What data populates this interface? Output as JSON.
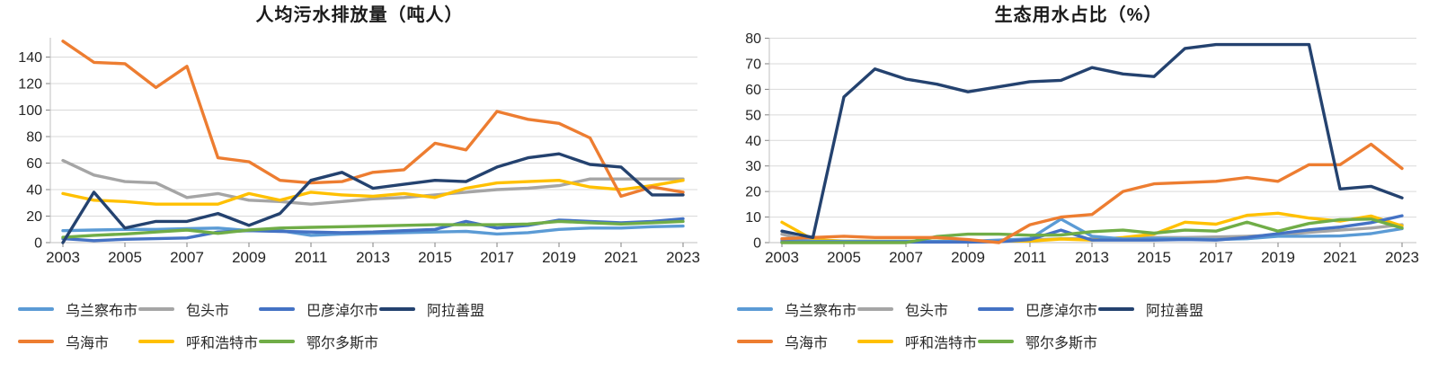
{
  "page": {
    "background": "#ffffff"
  },
  "chart_data": [
    {
      "type": "line",
      "title": "人均污水排放量（吨人）",
      "x": [
        2003,
        2004,
        2005,
        2006,
        2007,
        2008,
        2009,
        2010,
        2011,
        2012,
        2013,
        2014,
        2015,
        2016,
        2017,
        2018,
        2019,
        2020,
        2021,
        2022,
        2023
      ],
      "x_tick_labels": [
        "2003",
        "2005",
        "2007",
        "2009",
        "2011",
        "2013",
        "2015",
        "2017",
        "2019",
        "2021",
        "2023"
      ],
      "yticks": [
        0,
        20,
        40,
        60,
        80,
        100,
        120,
        140
      ],
      "ylim": [
        0,
        160
      ],
      "grid": "horizontal",
      "legend_position": "bottom",
      "series": [
        {
          "name": "乌兰察布市",
          "color": "#5B9BD5",
          "values": [
            9,
            9.5,
            10,
            10,
            10.5,
            11,
            9,
            9,
            5.5,
            6.5,
            7,
            7.5,
            8,
            8.5,
            6.5,
            7.5,
            10,
            11,
            11,
            12,
            12.5
          ]
        },
        {
          "name": "包头市",
          "color": "#A5A5A5",
          "values": [
            62,
            51,
            46,
            45,
            34,
            37,
            32,
            31,
            29,
            31,
            33,
            34,
            36,
            38,
            40,
            41,
            43,
            48,
            48,
            48,
            48
          ]
        },
        {
          "name": "巴彦淖尔市",
          "color": "#4472C4",
          "values": [
            3,
            1.5,
            2.5,
            3,
            3.5,
            8,
            9,
            8.5,
            8,
            7.5,
            8,
            9,
            10,
            16,
            11,
            13,
            17,
            16,
            15,
            16,
            18
          ]
        },
        {
          "name": "阿拉善盟",
          "color": "#24426F",
          "values": [
            0,
            38,
            11,
            16,
            16,
            22,
            13,
            22,
            47,
            53,
            41,
            44,
            47,
            46,
            57,
            64,
            67,
            59,
            57,
            36,
            36
          ]
        },
        {
          "name": "乌海市",
          "color": "#ED7D31",
          "values": [
            152,
            136,
            135,
            117,
            133,
            64,
            61,
            47,
            45,
            46,
            53,
            55,
            75,
            70,
            99,
            93,
            90,
            79,
            35,
            42,
            38
          ]
        },
        {
          "name": "呼和浩特市",
          "color": "#FFC000",
          "values": [
            37,
            32,
            31,
            29,
            29,
            29,
            37,
            32,
            38,
            36,
            35,
            37,
            34,
            41,
            45,
            46,
            47,
            42,
            40,
            43,
            47
          ]
        },
        {
          "name": "鄂尔多斯市",
          "color": "#70AD47",
          "values": [
            4,
            5.5,
            6.5,
            8,
            9.5,
            7,
            9.5,
            11,
            11.5,
            12,
            12.5,
            13,
            13.5,
            13.5,
            13.5,
            14,
            16,
            15,
            14,
            15,
            16
          ]
        }
      ]
    },
    {
      "type": "line",
      "title": "生态用水占比（%）",
      "x": [
        2003,
        2004,
        2005,
        2006,
        2007,
        2008,
        2009,
        2010,
        2011,
        2012,
        2013,
        2014,
        2015,
        2016,
        2017,
        2018,
        2019,
        2020,
        2021,
        2022,
        2023
      ],
      "x_tick_labels": [
        "2003",
        "2005",
        "2007",
        "2009",
        "2011",
        "2013",
        "2015",
        "2017",
        "2019",
        "2021",
        "2023"
      ],
      "yticks": [
        0,
        10,
        20,
        30,
        40,
        50,
        60,
        70,
        80
      ],
      "ylim": [
        0,
        83
      ],
      "grid": "horizontal",
      "legend_position": "bottom",
      "series": [
        {
          "name": "乌兰察布市",
          "color": "#5B9BD5",
          "values": [
            1,
            0.5,
            0.5,
            0.5,
            0.5,
            0.5,
            0.5,
            1,
            1.5,
            9.2,
            2.5,
            1.4,
            1.6,
            1.5,
            1.2,
            1.5,
            2.5,
            2.5,
            2.6,
            3.5,
            5.5
          ]
        },
        {
          "name": "包头市",
          "color": "#A5A5A5",
          "values": [
            3.3,
            0.6,
            0.5,
            0.5,
            0.5,
            0.5,
            0.5,
            0.5,
            1,
            1.5,
            1.5,
            1.8,
            2,
            2,
            2.2,
            2.5,
            3,
            4,
            4.9,
            5.7,
            7
          ]
        },
        {
          "name": "巴彦淖尔市",
          "color": "#4472C4",
          "values": [
            0.3,
            0.2,
            0.2,
            0.2,
            0.2,
            0.2,
            0.2,
            0.3,
            1.2,
            4.9,
            1,
            1,
            1,
            1.2,
            1,
            2,
            3.5,
            5,
            6.1,
            7.8,
            10.5
          ]
        },
        {
          "name": "阿拉善盟",
          "color": "#24426F",
          "values": [
            4.5,
            2,
            57,
            68,
            64,
            62,
            59,
            61,
            63,
            63.5,
            68.5,
            66,
            65,
            76,
            77.5,
            77.5,
            77.5,
            77.5,
            21,
            22,
            17.5
          ]
        },
        {
          "name": "乌海市",
          "color": "#ED7D31",
          "values": [
            1.5,
            2,
            2.5,
            2,
            2,
            2,
            1.2,
            0,
            7,
            10,
            11,
            20,
            23,
            23.5,
            24,
            25.5,
            24,
            30.5,
            30.5,
            38.5,
            29
          ]
        },
        {
          "name": "呼和浩特市",
          "color": "#FFC000",
          "values": [
            8,
            1.2,
            0.6,
            0.6,
            0.6,
            0.6,
            0.6,
            0.6,
            0.6,
            1.4,
            1,
            2,
            3.3,
            8,
            7.2,
            10.7,
            11.5,
            9.6,
            8.4,
            10.4,
            6.5
          ]
        },
        {
          "name": "鄂尔多斯市",
          "color": "#70AD47",
          "values": [
            0,
            0,
            0,
            0,
            0,
            2.4,
            3.3,
            3.3,
            2.9,
            3,
            4.3,
            4.9,
            3.7,
            4.9,
            4.5,
            8,
            4.5,
            7.5,
            9,
            9.2,
            5.7
          ]
        }
      ]
    }
  ]
}
